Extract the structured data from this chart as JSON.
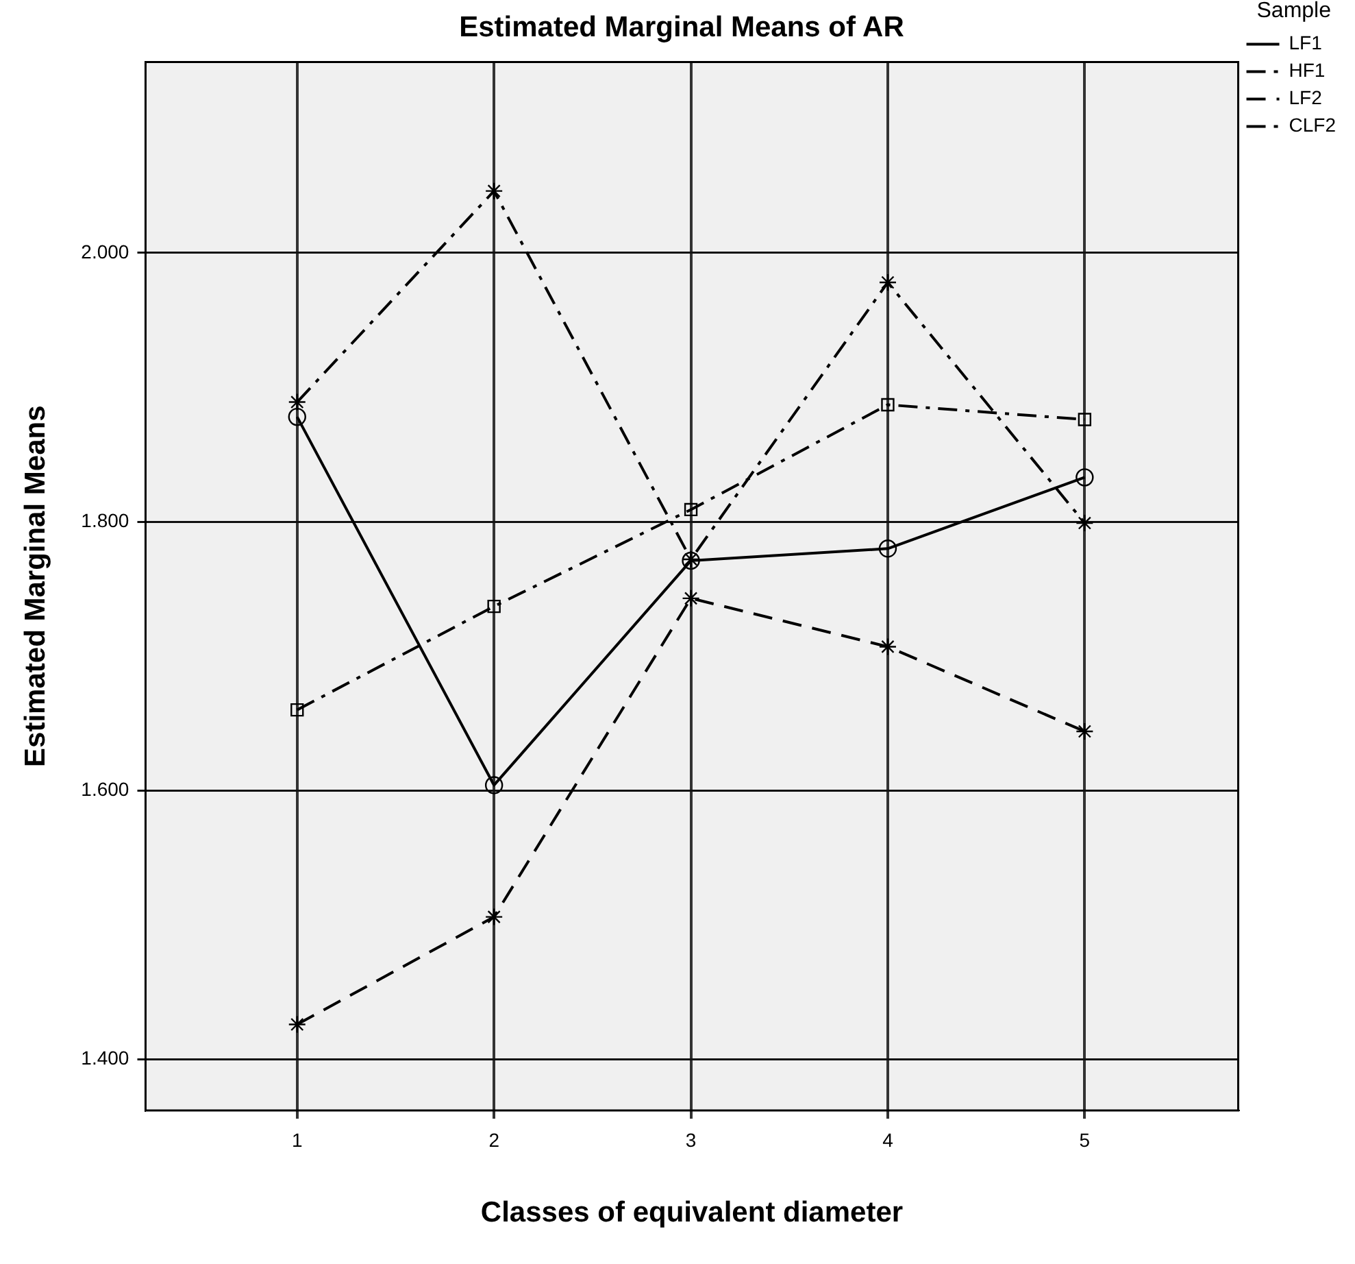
{
  "chart_data": {
    "type": "line",
    "title": "Estimated Marginal Means of AR",
    "xlabel": "Classes of equivalent diameter",
    "ylabel": "Estimated Marginal Means",
    "legend_title": "Sample",
    "x": [
      1,
      2,
      3,
      4,
      5
    ],
    "xlim": [
      0.23,
      5.78
    ],
    "xticks": [
      1,
      2,
      3,
      4,
      5
    ],
    "ylim": [
      1.362,
      2.142
    ],
    "yticks": [
      {
        "value": 1.4,
        "label": "1.400"
      },
      {
        "value": 1.6,
        "label": "1.600"
      },
      {
        "value": 1.8,
        "label": "1.800"
      },
      {
        "value": 2.0,
        "label": "2.000"
      }
    ],
    "grid": true,
    "legend": "top right",
    "series": [
      {
        "name": "LF1",
        "color": "#000000",
        "marker": "circle",
        "line_style": "solid",
        "values": [
          1.878,
          1.604,
          1.771,
          1.78,
          1.833
        ]
      },
      {
        "name": "HF1",
        "color": "#000000",
        "marker": "cross",
        "line_style": "dashdot",
        "values": [
          1.889,
          2.046,
          1.772,
          1.978,
          1.799
        ]
      },
      {
        "name": "LF2",
        "color": "#000000",
        "marker": "cross",
        "line_style": "dashed",
        "values": [
          1.426,
          1.506,
          1.743,
          1.707,
          1.644
        ]
      },
      {
        "name": "CLF2",
        "color": "#000000",
        "marker": "square",
        "line_style": "dashdot",
        "values": [
          1.66,
          1.737,
          1.809,
          1.887,
          1.876
        ]
      }
    ]
  }
}
